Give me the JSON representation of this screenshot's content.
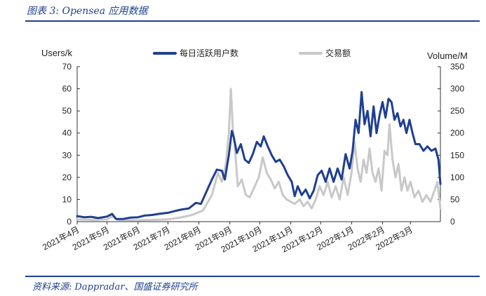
{
  "figure_title": "图表 3:  Opensea 应用数据",
  "source_note": "资料来源:  Dappradar、国盛证券研究所",
  "chart_data": {
    "type": "line",
    "y_left_label": "Users/k",
    "y_right_label": "Volume/M",
    "y_left_lim": [
      0,
      70
    ],
    "y_right_lim": [
      0,
      350
    ],
    "y_left_ticks": [
      0,
      10,
      20,
      30,
      40,
      50,
      60,
      70
    ],
    "y_right_ticks": [
      0,
      50,
      100,
      150,
      200,
      250,
      300,
      350
    ],
    "x_range": [
      "2021-04-01",
      "2022-03-31"
    ],
    "x_ticks": [
      {
        "date": "2021-04-01",
        "label": "2021年4月"
      },
      {
        "date": "2021-05-01",
        "label": "2021年5月"
      },
      {
        "date": "2021-06-01",
        "label": "2021年6月"
      },
      {
        "date": "2021-07-01",
        "label": "2021年7月"
      },
      {
        "date": "2021-08-01",
        "label": "2021年8月"
      },
      {
        "date": "2021-09-01",
        "label": "2021年9月"
      },
      {
        "date": "2021-10-01",
        "label": "2021年10月"
      },
      {
        "date": "2021-11-01",
        "label": "2021年11月"
      },
      {
        "date": "2021-12-01",
        "label": "2021年12月"
      },
      {
        "date": "2022-01-01",
        "label": "2022年1月"
      },
      {
        "date": "2022-02-01",
        "label": "2022年2月"
      },
      {
        "date": "2022-03-01",
        "label": "2022年3月"
      }
    ],
    "legend_position": "top",
    "grid": false,
    "series": [
      {
        "name": "每日活跃用户数",
        "axis": "left",
        "color": "#1f3f8f",
        "points": [
          [
            "2021-04-01",
            2.5
          ],
          [
            "2021-04-08",
            2.0
          ],
          [
            "2021-04-15",
            2.2
          ],
          [
            "2021-04-22",
            1.6
          ],
          [
            "2021-05-01",
            2.3
          ],
          [
            "2021-05-06",
            3.5
          ],
          [
            "2021-05-10",
            1.2
          ],
          [
            "2021-05-17",
            1.2
          ],
          [
            "2021-05-24",
            1.8
          ],
          [
            "2021-06-01",
            2.0
          ],
          [
            "2021-06-08",
            2.8
          ],
          [
            "2021-06-15",
            3.0
          ],
          [
            "2021-06-22",
            3.5
          ],
          [
            "2021-07-01",
            4.0
          ],
          [
            "2021-07-08",
            4.8
          ],
          [
            "2021-07-15",
            5.5
          ],
          [
            "2021-07-22",
            6.0
          ],
          [
            "2021-07-29",
            8.5
          ],
          [
            "2021-08-03",
            8.0
          ],
          [
            "2021-08-08",
            13.0
          ],
          [
            "2021-08-14",
            19.0
          ],
          [
            "2021-08-19",
            23.5
          ],
          [
            "2021-08-24",
            23.0
          ],
          [
            "2021-08-27",
            19.0
          ],
          [
            "2021-08-31",
            30.0
          ],
          [
            "2021-09-03",
            41.0
          ],
          [
            "2021-09-05",
            38.0
          ],
          [
            "2021-09-08",
            31.0
          ],
          [
            "2021-09-12",
            35.0
          ],
          [
            "2021-09-16",
            28.0
          ],
          [
            "2021-09-20",
            26.5
          ],
          [
            "2021-09-24",
            30.5
          ],
          [
            "2021-09-28",
            36.0
          ],
          [
            "2021-10-02",
            34.0
          ],
          [
            "2021-10-05",
            38.5
          ],
          [
            "2021-10-09",
            34.0
          ],
          [
            "2021-10-13",
            30.0
          ],
          [
            "2021-10-17",
            27.0
          ],
          [
            "2021-10-21",
            28.0
          ],
          [
            "2021-10-25",
            25.0
          ],
          [
            "2021-10-29",
            21.0
          ],
          [
            "2021-11-02",
            18.0
          ],
          [
            "2021-11-05",
            11.5
          ],
          [
            "2021-11-08",
            16.0
          ],
          [
            "2021-11-12",
            12.0
          ],
          [
            "2021-11-16",
            14.5
          ],
          [
            "2021-11-20",
            10.5
          ],
          [
            "2021-11-24",
            14.0
          ],
          [
            "2021-11-28",
            21.0
          ],
          [
            "2021-12-02",
            23.0
          ],
          [
            "2021-12-06",
            18.0
          ],
          [
            "2021-12-10",
            24.0
          ],
          [
            "2021-12-14",
            18.0
          ],
          [
            "2021-12-18",
            24.0
          ],
          [
            "2021-12-22",
            19.0
          ],
          [
            "2021-12-26",
            30.5
          ],
          [
            "2021-12-30",
            24.0
          ],
          [
            "2022-01-02",
            32.0
          ],
          [
            "2022-01-05",
            46.0
          ],
          [
            "2022-01-08",
            40.0
          ],
          [
            "2022-01-11",
            58.5
          ],
          [
            "2022-01-14",
            44.0
          ],
          [
            "2022-01-17",
            50.0
          ],
          [
            "2022-01-20",
            38.5
          ],
          [
            "2022-01-23",
            52.0
          ],
          [
            "2022-01-26",
            40.0
          ],
          [
            "2022-01-29",
            48.0
          ],
          [
            "2022-02-01",
            54.0
          ],
          [
            "2022-02-04",
            47.0
          ],
          [
            "2022-02-07",
            55.5
          ],
          [
            "2022-02-10",
            54.0
          ],
          [
            "2022-02-13",
            46.0
          ],
          [
            "2022-02-16",
            49.0
          ],
          [
            "2022-02-19",
            43.0
          ],
          [
            "2022-02-22",
            46.0
          ],
          [
            "2022-02-25",
            40.0
          ],
          [
            "2022-02-28",
            46.0
          ],
          [
            "2022-03-03",
            40.0
          ],
          [
            "2022-03-06",
            35.0
          ],
          [
            "2022-03-10",
            35.0
          ],
          [
            "2022-03-14",
            32.0
          ],
          [
            "2022-03-18",
            34.0
          ],
          [
            "2022-03-22",
            32.0
          ],
          [
            "2022-03-26",
            33.0
          ],
          [
            "2022-03-29",
            28.0
          ],
          [
            "2022-03-31",
            17.0
          ]
        ]
      },
      {
        "name": "交易额",
        "axis": "right",
        "color": "#c8c8c8",
        "points": [
          [
            "2021-04-01",
            5
          ],
          [
            "2021-04-15",
            4
          ],
          [
            "2021-05-01",
            5
          ],
          [
            "2021-05-06",
            12
          ],
          [
            "2021-05-12",
            4
          ],
          [
            "2021-06-01",
            3
          ],
          [
            "2021-06-15",
            4
          ],
          [
            "2021-07-01",
            5
          ],
          [
            "2021-07-15",
            10
          ],
          [
            "2021-07-25",
            15
          ],
          [
            "2021-08-05",
            25
          ],
          [
            "2021-08-14",
            60
          ],
          [
            "2021-08-20",
            110
          ],
          [
            "2021-08-24",
            90
          ],
          [
            "2021-08-28",
            130
          ],
          [
            "2021-08-31",
            200
          ],
          [
            "2021-09-02",
            300
          ],
          [
            "2021-09-04",
            210
          ],
          [
            "2021-09-06",
            170
          ],
          [
            "2021-09-09",
            80
          ],
          [
            "2021-09-13",
            95
          ],
          [
            "2021-09-17",
            60
          ],
          [
            "2021-09-21",
            55
          ],
          [
            "2021-09-25",
            75
          ],
          [
            "2021-09-30",
            100
          ],
          [
            "2021-10-04",
            145
          ],
          [
            "2021-10-08",
            110
          ],
          [
            "2021-10-12",
            95
          ],
          [
            "2021-10-16",
            75
          ],
          [
            "2021-10-20",
            90
          ],
          [
            "2021-10-24",
            60
          ],
          [
            "2021-10-28",
            50
          ],
          [
            "2021-11-01",
            45
          ],
          [
            "2021-11-05",
            40
          ],
          [
            "2021-11-10",
            50
          ],
          [
            "2021-11-14",
            35
          ],
          [
            "2021-11-18",
            45
          ],
          [
            "2021-11-22",
            30
          ],
          [
            "2021-11-26",
            50
          ],
          [
            "2021-11-30",
            80
          ],
          [
            "2021-12-04",
            60
          ],
          [
            "2021-12-08",
            90
          ],
          [
            "2021-12-12",
            55
          ],
          [
            "2021-12-16",
            80
          ],
          [
            "2021-12-20",
            50
          ],
          [
            "2021-12-24",
            100
          ],
          [
            "2021-12-28",
            60
          ],
          [
            "2022-01-01",
            110
          ],
          [
            "2022-01-04",
            180
          ],
          [
            "2022-01-07",
            120
          ],
          [
            "2022-01-10",
            90
          ],
          [
            "2022-01-13",
            140
          ],
          [
            "2022-01-16",
            110
          ],
          [
            "2022-01-19",
            165
          ],
          [
            "2022-01-22",
            110
          ],
          [
            "2022-01-25",
            90
          ],
          [
            "2022-01-28",
            120
          ],
          [
            "2022-01-31",
            70
          ],
          [
            "2022-02-03",
            160
          ],
          [
            "2022-02-06",
            150
          ],
          [
            "2022-02-08",
            220
          ],
          [
            "2022-02-11",
            140
          ],
          [
            "2022-02-14",
            100
          ],
          [
            "2022-02-17",
            130
          ],
          [
            "2022-02-20",
            70
          ],
          [
            "2022-02-23",
            100
          ],
          [
            "2022-02-26",
            70
          ],
          [
            "2022-03-01",
            90
          ],
          [
            "2022-03-05",
            55
          ],
          [
            "2022-03-09",
            70
          ],
          [
            "2022-03-13",
            45
          ],
          [
            "2022-03-17",
            60
          ],
          [
            "2022-03-21",
            45
          ],
          [
            "2022-03-25",
            70
          ],
          [
            "2022-03-28",
            90
          ],
          [
            "2022-03-31",
            30
          ]
        ]
      }
    ]
  }
}
